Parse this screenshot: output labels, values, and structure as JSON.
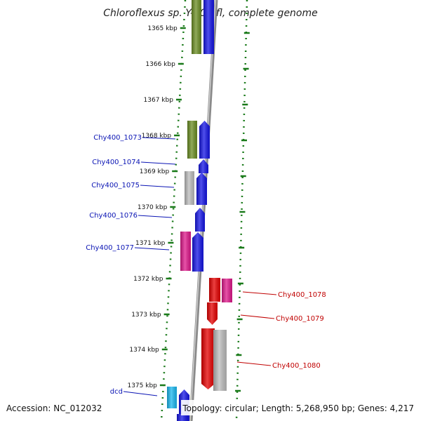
{
  "title": "Chloroflexus sp. Y-400-fl, complete genome",
  "footer": {
    "accession": "Accession: NC_012032",
    "topology": "Topology: circular; Length: 5,268,950 bp; Genes: 4,217"
  },
  "colors": {
    "olive": "#6b8e23",
    "blue": "#1515e6",
    "gray": "#bdbdbd",
    "magenta": "#e0198c",
    "red": "#e60000",
    "cyan": "#1ab8f0",
    "axis": "#8c8c8c",
    "ruler": "#1a7a1a"
  },
  "kbp_labels": [
    "1365 kbp",
    "1366 kbp",
    "1367 kbp",
    "1368 kbp",
    "1369 kbp",
    "1370 kbp",
    "1371 kbp",
    "1372 kbp",
    "1373 kbp",
    "1374 kbp",
    "1375 kbp"
  ],
  "gene_labels_left": [
    "Chy400_1073",
    "Chy400_1074",
    "Chy400_1075",
    "Chy400_1076",
    "Chy400_1077",
    "dcd"
  ],
  "gene_labels_right": [
    "Chy400_1078",
    "Chy400_1079",
    "Chy400_1080"
  ]
}
